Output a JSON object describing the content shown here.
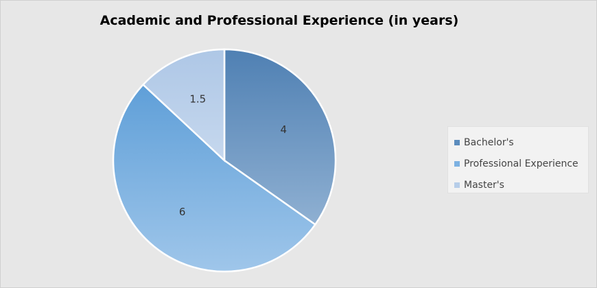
{
  "chart_data": {
    "type": "pie",
    "title": "Academic and Professional Experience (in years)",
    "categories": [
      "Bachelor's",
      "Professional Experience",
      "Master's"
    ],
    "values": [
      4,
      6,
      1.5
    ],
    "data_labels": [
      "4",
      "6",
      "1.5"
    ],
    "colors": [
      "#5b8cbd",
      "#7cb1e2",
      "#b6cde9"
    ],
    "start_angle_deg": 0,
    "direction": "clockwise",
    "legend_position": "right"
  }
}
